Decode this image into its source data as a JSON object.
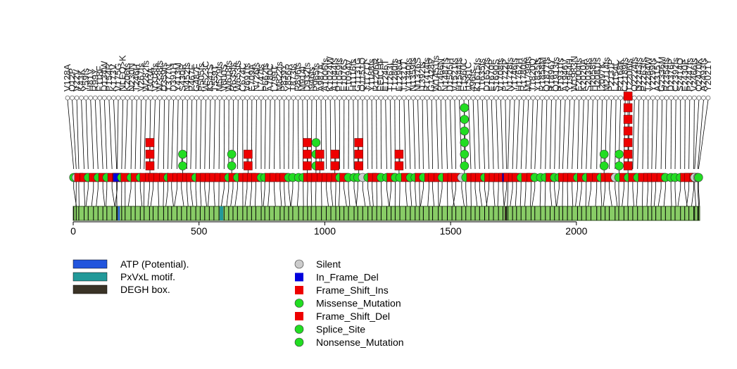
{
  "chart_data": {
    "type": "lollipop",
    "title": "",
    "protein_length": 2490,
    "x_axis": {
      "range": [
        0,
        2490
      ],
      "ticks": [
        0,
        500,
        1000,
        1500,
        2000
      ],
      "tick_labels": [
        "0",
        "500",
        "1000",
        "1500",
        "2000"
      ]
    },
    "domains": [
      {
        "name": "ATP (Potential).",
        "start": 178,
        "end": 185,
        "color": "#2255dd"
      },
      {
        "name": "PxVxL motif.",
        "start": 582,
        "end": 596,
        "color": "#229999"
      },
      {
        "name": "DEGH box.",
        "start": 1715,
        "end": 1718,
        "color": "#3a3326"
      }
    ],
    "mutation_types": [
      {
        "name": "Silent",
        "color": "#cccccc",
        "shape": "circle"
      },
      {
        "name": "In_Frame_Del",
        "color": "#0000dd",
        "shape": "square"
      },
      {
        "name": "Frame_Shift_Ins",
        "color": "#ee0000",
        "shape": "square"
      },
      {
        "name": "Missense_Mutation",
        "color": "#22dd22",
        "shape": "circle"
      },
      {
        "name": "Frame_Shift_Del",
        "color": "#ee0000",
        "shape": "square"
      },
      {
        "name": "Splice_Site",
        "color": "#22dd22",
        "shape": "circle"
      },
      {
        "name": "Nonsense_Mutation",
        "color": "#22dd22",
        "shape": "circle"
      }
    ],
    "visible_labels": [
      "V128A",
      "P662fs",
      "NLEQ>K",
      "EEICHF",
      "Y2021Y",
      "A2493fs",
      "496fs"
    ],
    "stacks": [
      {
        "pos": 305,
        "type": "Frame_Shift_Ins",
        "count": 3
      },
      {
        "pos": 435,
        "type": "Missense_Mutation",
        "count": 2
      },
      {
        "pos": 630,
        "type": "Missense_Mutation",
        "count": 2
      },
      {
        "pos": 695,
        "type": "Frame_Shift_Ins",
        "count": 2
      },
      {
        "pos": 930,
        "type": "Frame_Shift_Ins",
        "count": 3
      },
      {
        "pos": 965,
        "type": "Missense_Mutation",
        "count": 3
      },
      {
        "pos": 980,
        "type": "Frame_Shift_Ins",
        "count": 2
      },
      {
        "pos": 1040,
        "type": "Frame_Shift_Ins",
        "count": 2
      },
      {
        "pos": 1135,
        "type": "Frame_Shift_Ins",
        "count": 3
      },
      {
        "pos": 1295,
        "type": "Frame_Shift_Ins",
        "count": 2
      },
      {
        "pos": 1555,
        "type": "Missense_Mutation",
        "count": 6
      },
      {
        "pos": 2110,
        "type": "Missense_Mutation",
        "count": 2
      },
      {
        "pos": 2170,
        "type": "Missense_Mutation",
        "count": 2
      },
      {
        "pos": 2205,
        "type": "Frame_Shift_Ins",
        "count": 7
      }
    ]
  }
}
